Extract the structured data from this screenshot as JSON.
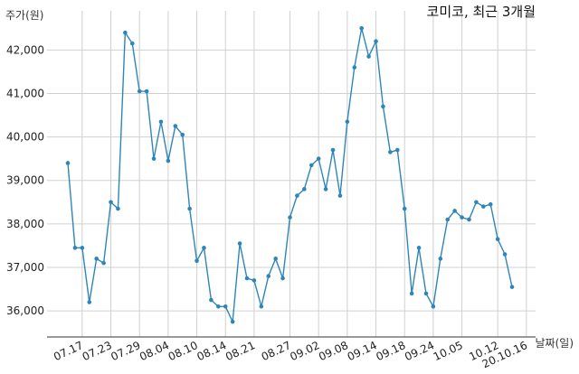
{
  "chart_data": {
    "type": "line",
    "title": "코미코, 최근 3개월",
    "xlabel": "날짜(일)",
    "ylabel": "주가(원)",
    "grid": true,
    "ylim": [
      35400,
      42900
    ],
    "y_ticks": [
      36000,
      37000,
      38000,
      39000,
      40000,
      41000,
      42000
    ],
    "y_tick_labels": [
      "36,000",
      "37,000",
      "38,000",
      "39,000",
      "40,000",
      "41,000",
      "42,000"
    ],
    "x_tick_labels": [
      "07.17",
      "07.23",
      "07.29",
      "08.04",
      "08.10",
      "08.14",
      "08.21",
      "08.27",
      "09.02",
      "09.08",
      "09.14",
      "09.18",
      "09.24",
      "10.05",
      "10.12",
      "20.10.16"
    ],
    "x_tick_indices": [
      2,
      6,
      10,
      14,
      18,
      22,
      26,
      31,
      35,
      39,
      43,
      47,
      51,
      55,
      60,
      64
    ],
    "series": [
      {
        "color": "#2e86b8",
        "values": [
          39400,
          37450,
          37450,
          36200,
          37200,
          37100,
          38500,
          38350,
          42400,
          42150,
          41050,
          41050,
          39500,
          40350,
          39450,
          40250,
          40050,
          38350,
          37150,
          37450,
          36250,
          36100,
          36100,
          35750,
          37550,
          36750,
          36700,
          36100,
          36800,
          37200,
          36750,
          38150,
          38650,
          38800,
          39350,
          39500,
          38800,
          39700,
          38650,
          40350,
          41600,
          42500,
          41850,
          42200,
          40700,
          39650,
          39700,
          38350,
          36400,
          37450,
          36400,
          36100,
          37200,
          38100,
          38300,
          38150,
          38100,
          38500,
          38400,
          38450,
          37650,
          37300,
          36550
        ]
      }
    ]
  }
}
